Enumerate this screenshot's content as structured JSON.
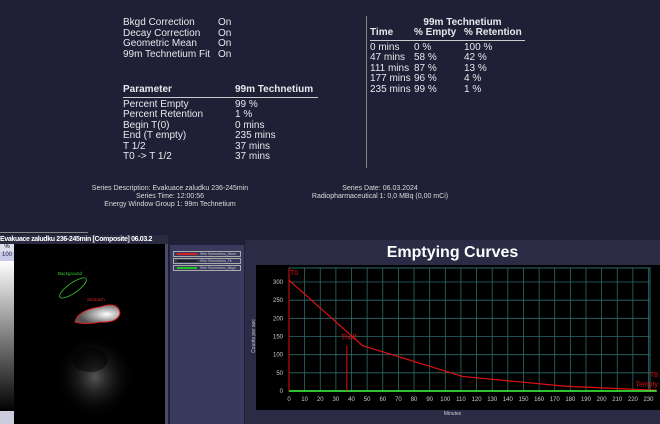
{
  "settings": [
    {
      "label": "Bkgd Correction",
      "value": "On"
    },
    {
      "label": "Decay Correction",
      "value": "On"
    },
    {
      "label": "Geometric Mean",
      "value": "On"
    },
    {
      "label": "99m Technetium Fit",
      "value": "On"
    }
  ],
  "params": {
    "header": [
      "Parameter",
      "99m Technetium"
    ],
    "rows": [
      [
        "Percent Empty",
        "99 %"
      ],
      [
        "Percent Retention",
        "1 %"
      ],
      [
        "Begin T(0)",
        "0 mins"
      ],
      [
        "End (T empty)",
        "235 mins"
      ],
      [
        "T 1/2",
        "37 mins"
      ],
      [
        "T0 -> T 1/2",
        "37 mins"
      ]
    ]
  },
  "timetable": {
    "title": "99m Technetium",
    "header": [
      "Time",
      "% Empty",
      "% Retention"
    ],
    "rows": [
      [
        "0 mins",
        "0 %",
        "100 %"
      ],
      [
        "47 mins",
        "58 %",
        "42 %"
      ],
      [
        "111 mins",
        "87 %",
        "13 %"
      ],
      [
        "177 mins",
        "96 %",
        "4 %"
      ],
      [
        "235 mins",
        "99 %",
        "1 %"
      ]
    ]
  },
  "series_info": {
    "description": "Series Description: Evakuace zaludku 236-245min",
    "time": "Series Time: 12:00:56",
    "energy": "Energy Window Group 1: 99m Technetium",
    "date": "Series Date: 06.03.2024",
    "radio": "Radiopharmaceutical 1: 0,0 MBq (0,00 mCi)"
  },
  "viewer": {
    "title": "Evakuace zaludku 236-245min [Composite] 06.03.2",
    "scale_unit": "%",
    "scale_max": "100",
    "roi_background": "Background",
    "roi_stomach": "Stomach"
  },
  "legend": [
    {
      "label": "99m Technetium_Stom",
      "color": "#d02020"
    },
    {
      "label": "99m Technetium_Fit",
      "color": "#202020"
    },
    {
      "label": "99m Technetium_Bkgd",
      "color": "#20c020"
    }
  ],
  "chart_data": {
    "type": "line",
    "title": "Emptying Curves",
    "xlabel": "Minutes",
    "ylabel": "Counts per sec",
    "xlim": [
      0,
      235
    ],
    "ylim": [
      0,
      340
    ],
    "grid": true,
    "xticks": [
      0,
      10,
      20,
      30,
      40,
      50,
      60,
      70,
      80,
      90,
      100,
      110,
      120,
      130,
      140,
      150,
      160,
      170,
      180,
      190,
      200,
      210,
      220,
      230
    ],
    "yticks": [
      0,
      50,
      100,
      150,
      200,
      250,
      300
    ],
    "series": [
      {
        "color": "#e01010",
        "x": [
          0,
          47,
          111,
          177,
          235
        ],
        "y": [
          305,
          125,
          40,
          13,
          2
        ]
      },
      {
        "color": "#40ff40",
        "x": [
          0,
          235
        ],
        "y": [
          0,
          0
        ]
      }
    ],
    "markers": [
      {
        "label": "T0",
        "x": 0
      },
      {
        "label": "Thalf",
        "x": 37
      },
      {
        "label": "T8",
        "x": 235
      },
      {
        "label": "Tempty",
        "x": 235
      }
    ]
  }
}
